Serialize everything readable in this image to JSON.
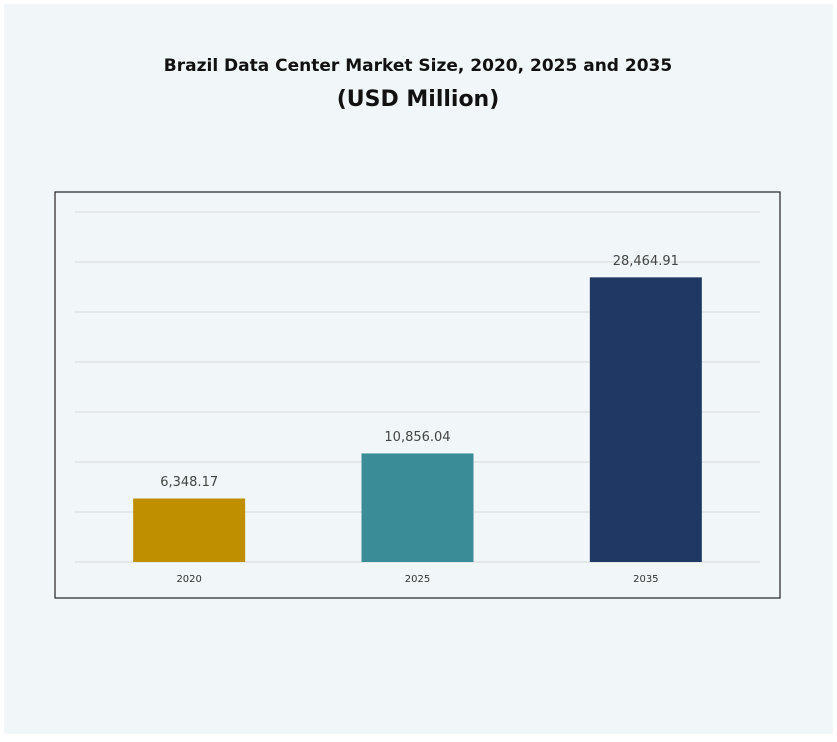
{
  "chart_data": {
    "type": "bar",
    "title": "Brazil Data Center Market Size, 2020, 2025 and 2035",
    "subtitle": "(USD Million)",
    "categories": [
      "2020",
      "2025",
      "2035"
    ],
    "values": [
      6348.17,
      10856.04,
      28464.91
    ],
    "value_labels": [
      "6,348.17",
      "10,856.04",
      "28,464.91"
    ],
    "colors": [
      "#bf8f00",
      "#3a8d96",
      "#203864"
    ],
    "ylim": [
      0,
      35000
    ],
    "yticks": [
      0,
      5000,
      10000,
      15000,
      20000,
      25000,
      30000,
      35000
    ],
    "grid": true
  }
}
